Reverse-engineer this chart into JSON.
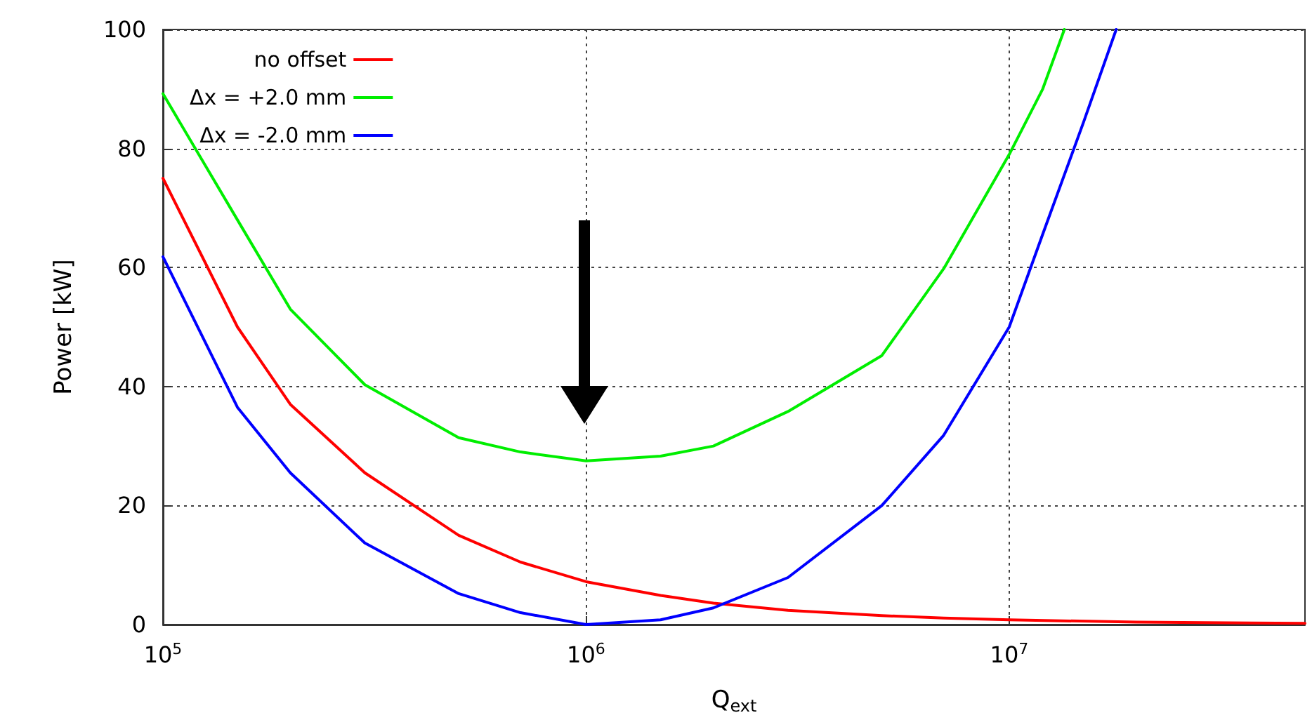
{
  "chart_data": {
    "type": "line",
    "xlabel": "Q$_{ext}$",
    "ylabel": "Power [kW]",
    "log": "x",
    "xlim": [
      100000,
      50000000
    ],
    "xticks": [
      {
        "value": 100000,
        "label": "10$^{5}$"
      },
      {
        "value": 1000000,
        "label": "10$^{6}$"
      },
      {
        "value": 10000000,
        "label": "10$^{7}$"
      }
    ],
    "ylim": [
      0,
      100
    ],
    "yticks": [
      0,
      20,
      40,
      60,
      80,
      100
    ],
    "grid": true,
    "legend": "top left",
    "marker": "none",
    "line_style": "solid",
    "series": [
      {
        "name": "no offset",
        "color": "#ff0000",
        "x": [
          100000,
          150000,
          200000,
          300000,
          500000,
          700000,
          1000000,
          1500000,
          2000000,
          3000000,
          5000000,
          7000000,
          10000000,
          20000000,
          50000000
        ],
        "values": [
          75,
          50,
          37,
          25.5,
          15,
          10.5,
          7.2,
          4.9,
          3.6,
          2.4,
          1.5,
          1.1,
          0.8,
          0.4,
          0.2
        ]
      },
      {
        "name": "Δx = +2.0 mm",
        "color": "#00ee00",
        "x": [
          100000,
          150000,
          200000,
          300000,
          500000,
          700000,
          1000000,
          1500000,
          2000000,
          3000000,
          5000000,
          7000000,
          10000000,
          12000000,
          13500000
        ],
        "values": [
          89.2,
          68,
          53,
          40.3,
          31.4,
          29,
          27.5,
          28.3,
          30,
          35.8,
          45.2,
          59.8,
          79,
          90,
          100
        ]
      },
      {
        "name": "Δx = -2.0 mm",
        "color": "#0000ff",
        "x": [
          100000,
          150000,
          200000,
          300000,
          500000,
          700000,
          1000000,
          1500000,
          2000000,
          3000000,
          5000000,
          7000000,
          10000000,
          12000000,
          15000000,
          17900000
        ],
        "values": [
          61.8,
          36.5,
          25.5,
          13.7,
          5.2,
          2,
          0,
          0.8,
          2.8,
          7.9,
          20,
          31.8,
          50,
          65.6,
          84.5,
          100
        ]
      }
    ]
  }
}
